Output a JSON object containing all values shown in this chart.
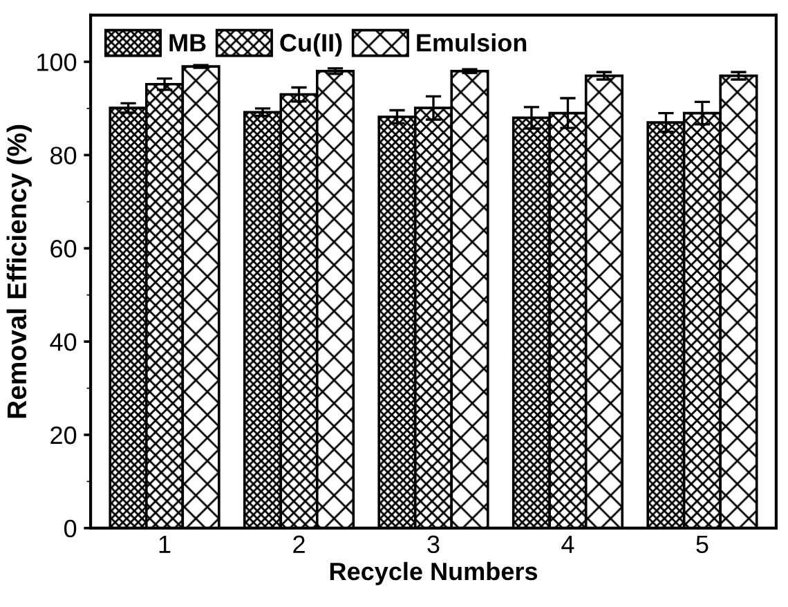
{
  "chart_data": {
    "type": "bar",
    "xlabel": "Recycle Numbers",
    "ylabel": "Removal Efficiency (%)",
    "categories": [
      "1",
      "2",
      "3",
      "4",
      "5"
    ],
    "series": [
      {
        "name": "MB",
        "color": "#000000",
        "values": [
          90.1,
          89.2,
          88.2,
          88,
          87
        ],
        "errors": [
          1,
          0.8,
          1.4,
          2.3,
          2
        ]
      },
      {
        "name": "Cu(II)",
        "color": "#000000",
        "values": [
          95.2,
          93,
          90.1,
          89,
          89
        ],
        "errors": [
          1.2,
          1.5,
          2.5,
          3.2,
          2.4
        ]
      },
      {
        "name": "Emulsion",
        "color": "#000000",
        "values": [
          99,
          98,
          98,
          97,
          97
        ],
        "errors": [
          0.3,
          0.6,
          0.4,
          0.8,
          0.8
        ]
      }
    ],
    "ylim": [
      0,
      110
    ],
    "yticks": [
      0,
      20,
      40,
      60,
      80,
      100
    ],
    "grid": false,
    "legend": "top left"
  }
}
